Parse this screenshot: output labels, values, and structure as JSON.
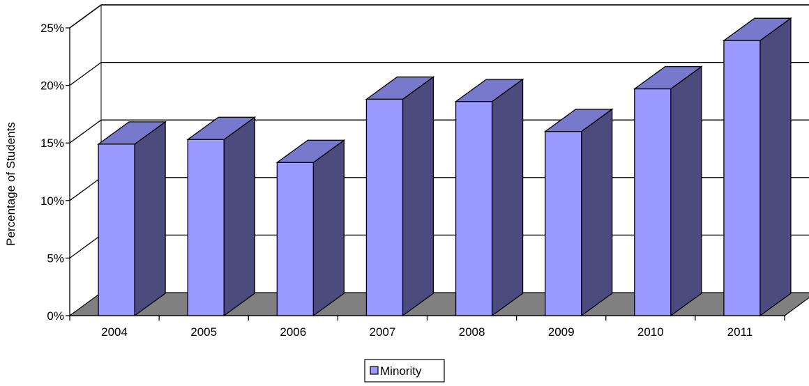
{
  "chart_data": {
    "type": "bar",
    "categories": [
      "2004",
      "2005",
      "2006",
      "2007",
      "2008",
      "2009",
      "2010",
      "2011"
    ],
    "series": [
      {
        "name": "Minority",
        "values": [
          14.9,
          15.3,
          13.3,
          18.8,
          18.6,
          16.0,
          19.7,
          23.9
        ]
      }
    ],
    "xlabel": "",
    "ylabel": "Percentage of Students",
    "ylim": [
      0,
      25
    ],
    "yticks": [
      "0%",
      "5%",
      "10%",
      "15%",
      "20%",
      "25%"
    ],
    "ytick_values": [
      0,
      5,
      10,
      15,
      20,
      25
    ],
    "grid": true,
    "legend_position": "bottom",
    "style": "3d-column",
    "colors": {
      "bar_front": "#9999ff",
      "bar_side": "#4b4b7d",
      "bar_top": "#7878cc",
      "floor": "#808080",
      "wall": "#ffffff",
      "wall_border": "#808080"
    }
  }
}
